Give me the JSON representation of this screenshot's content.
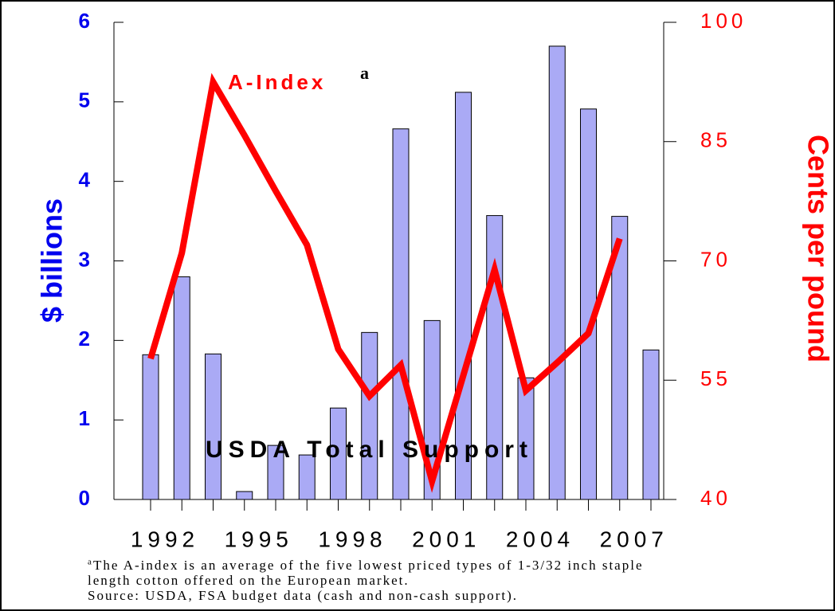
{
  "chart_data": {
    "type": "bar_line",
    "categories": [
      "1992",
      null,
      null,
      "1995",
      null,
      null,
      "1998",
      null,
      null,
      "2001",
      null,
      null,
      "2004",
      null,
      null,
      "2007",
      null
    ],
    "series": [
      {
        "name": "USDA Total Support",
        "type": "bar",
        "color": "#aaaaf5",
        "axis": "y",
        "values": [
          1.82,
          2.8,
          1.83,
          0.1,
          0.68,
          0.56,
          1.15,
          2.1,
          4.66,
          2.25,
          5.12,
          3.57,
          1.53,
          5.7,
          4.91,
          3.56,
          1.88
        ]
      },
      {
        "name": "A-Index",
        "name_superscript": "a",
        "type": "line",
        "color": "#ff0000",
        "axis": "y2",
        "values": [
          57.7,
          71.0,
          92.5,
          85.8,
          78.8,
          72.0,
          58.9,
          53.0,
          56.9,
          42.3,
          55.6,
          68.9,
          53.7,
          57.2,
          60.9,
          72.8,
          null
        ]
      }
    ],
    "ylabel": "$ billions",
    "y2label": "Cents per pound",
    "ylim": [
      0,
      6
    ],
    "yticks": [
      0,
      1,
      2,
      3,
      4,
      5,
      6
    ],
    "y2lim": [
      40,
      100
    ],
    "y2ticks": [
      40,
      55,
      70,
      85,
      100
    ],
    "footnote": [
      "The A-index is an average of the five lowest priced types of 1-3/32 inch staple",
      "length cotton offered on the European market."
    ],
    "footnote_marker": "a",
    "source": "Source: USDA, FSA budget data (cash and non-cash support)."
  }
}
